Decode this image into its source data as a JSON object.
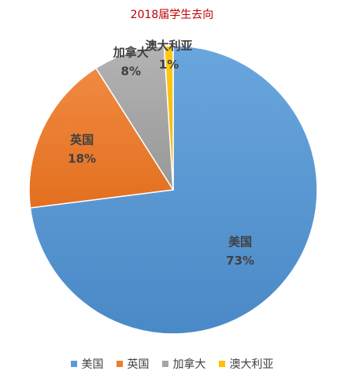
{
  "chart_data": {
    "type": "pie",
    "title": "2018届学生去向",
    "categories": [
      "美国",
      "英国",
      "加拿大",
      "澳大利亚"
    ],
    "values": [
      73,
      18,
      8,
      1
    ],
    "labels": [
      "73%",
      "18%",
      "8%",
      "1%"
    ],
    "colors": [
      "#5b9bd5",
      "#ed7d31",
      "#a5a5a5",
      "#ffc000"
    ],
    "legend": "bottom"
  }
}
